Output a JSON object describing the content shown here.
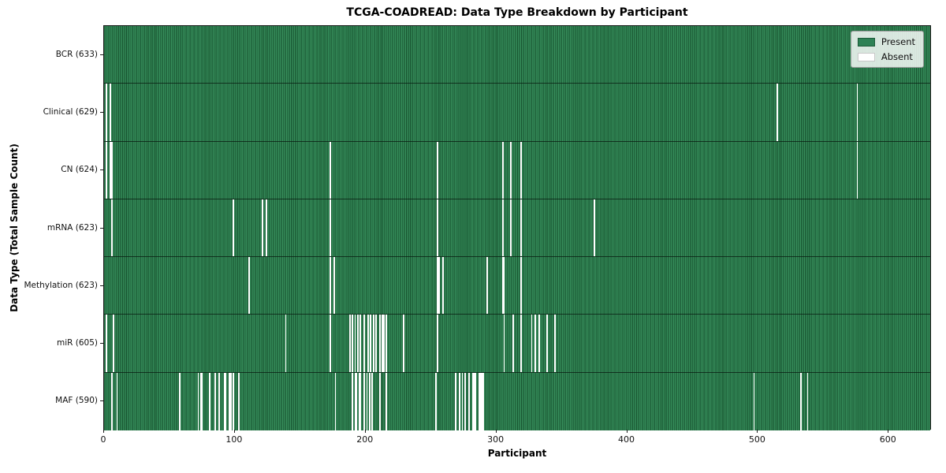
{
  "figure": {
    "title": "TCGA-COADREAD: Data Type Breakdown by Participant",
    "xlabel": "Participant",
    "ylabel": "Data Type (Total Sample Count)"
  },
  "legend": {
    "present_label": "Present",
    "absent_label": "Absent"
  },
  "chart_data": {
    "type": "heatmap",
    "title": "TCGA-COADREAD: Data Type Breakdown by Participant",
    "xlabel": "Participant",
    "ylabel": "Data Type (Total Sample Count)",
    "legend_entries": [
      "Present",
      "Absent"
    ],
    "legend_position": "upper right",
    "n_participants": 633,
    "x_ticks": [
      0,
      100,
      200,
      300,
      400,
      500,
      600
    ],
    "xlim": [
      0,
      633
    ],
    "colors": {
      "present": "#2e8155",
      "present_light": "#38915d",
      "present_dark": "#17532f",
      "absent": "#ffffff"
    },
    "rows": [
      {
        "data_type": "BCR",
        "label": "BCR (633)",
        "total_samples": 633,
        "absent_participants": []
      },
      {
        "data_type": "Clinical",
        "label": "Clinical (629)",
        "total_samples": 629,
        "absent_participants": [
          2,
          5,
          515,
          576
        ]
      },
      {
        "data_type": "CN",
        "label": "CN (624)",
        "total_samples": 624,
        "absent_participants": [
          2,
          5,
          6,
          173,
          255,
          305,
          311,
          319,
          576
        ]
      },
      {
        "data_type": "mRNA",
        "label": "mRNA (623)",
        "total_samples": 623,
        "absent_participants": [
          6,
          99,
          121,
          124,
          173,
          255,
          305,
          311,
          319,
          375
        ]
      },
      {
        "data_type": "Methylation",
        "label": "Methylation (623)",
        "total_samples": 623,
        "absent_participants": [
          111,
          173,
          176,
          255,
          256,
          259,
          293,
          305,
          306,
          319
        ]
      },
      {
        "data_type": "miR",
        "label": "miR (605)",
        "total_samples": 605,
        "absent_participants": [
          2,
          7,
          139,
          173,
          188,
          190,
          192,
          194,
          196,
          199,
          202,
          204,
          206,
          208,
          211,
          213,
          214,
          216,
          229,
          255,
          306,
          313,
          319,
          327,
          330,
          333,
          339,
          345
        ]
      },
      {
        "data_type": "MAF",
        "label": "MAF (590)",
        "total_samples": 590,
        "absent_participants": [
          6,
          10,
          58,
          72,
          74,
          75,
          81,
          85,
          88,
          92,
          93,
          96,
          97,
          99,
          103,
          177,
          190,
          192,
          193,
          195,
          196,
          199,
          201,
          203,
          205,
          211,
          216,
          254,
          269,
          272,
          274,
          276,
          279,
          282,
          283,
          284,
          287,
          288,
          289,
          290,
          497,
          533,
          538
        ]
      }
    ]
  }
}
